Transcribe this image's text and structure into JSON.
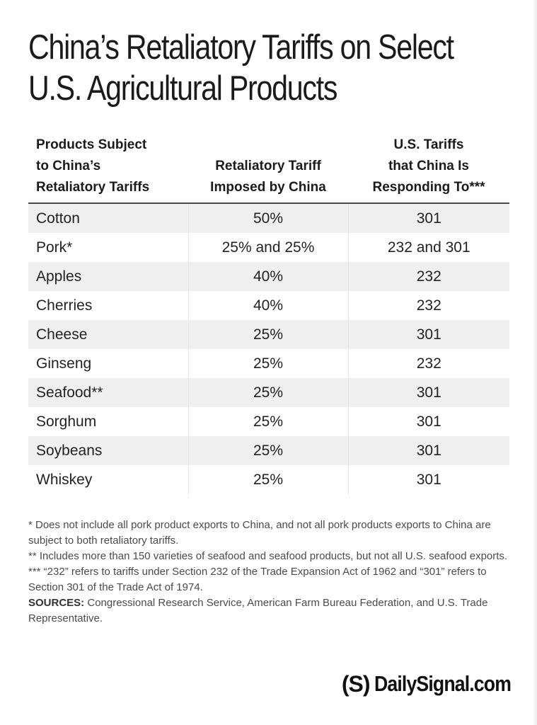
{
  "title": {
    "line1": "China’s Retaliatory Tariffs on Select",
    "line2": "U.S. Agricultural Products"
  },
  "table": {
    "headers": {
      "col1": [
        "Products Subject",
        "to China’s",
        "Retaliatory Tariffs"
      ],
      "col2": [
        "Retaliatory Tariff",
        "Imposed by China"
      ],
      "col3": [
        "U.S. Tariffs",
        "that China Is",
        "Responding To***"
      ]
    },
    "rows": [
      {
        "product": "Cotton",
        "tariff": "50%",
        "us_tariff": "301"
      },
      {
        "product": "Pork*",
        "tariff": "25% and 25%",
        "us_tariff": "232 and 301"
      },
      {
        "product": "Apples",
        "tariff": "40%",
        "us_tariff": "232"
      },
      {
        "product": "Cherries",
        "tariff": "40%",
        "us_tariff": "232"
      },
      {
        "product": "Cheese",
        "tariff": "25%",
        "us_tariff": "301"
      },
      {
        "product": "Ginseng",
        "tariff": "25%",
        "us_tariff": "232"
      },
      {
        "product": "Seafood**",
        "tariff": "25%",
        "us_tariff": "301"
      },
      {
        "product": "Sorghum",
        "tariff": "25%",
        "us_tariff": "301"
      },
      {
        "product": "Soybeans",
        "tariff": "25%",
        "us_tariff": "301"
      },
      {
        "product": "Whiskey",
        "tariff": "25%",
        "us_tariff": "301"
      }
    ]
  },
  "notes": {
    "note1": "* Does not include all pork product exports to China, and not all pork products exports to China are subject to both retaliatory tariffs.",
    "note2": "** Includes more than 150 varieties of seafood and seafood products, but not all U.S. seafood exports.",
    "note3": "*** “232” refers to tariffs under Section 232 of the Trade Expansion Act of 1962 and “301” refers to Section 301 of the Trade Act of 1974.",
    "sources_label": "SOURCES:",
    "sources_text": " Congressional Research Service, American Farm Bureau Federation, and U.S. Trade Representative."
  },
  "brand": {
    "logo": "(S)",
    "wordmark": "DailySignal.com"
  },
  "colors": {
    "row_shade": "#efefef",
    "text": "#1b1b1b",
    "notes_text": "#4a4a4a"
  }
}
